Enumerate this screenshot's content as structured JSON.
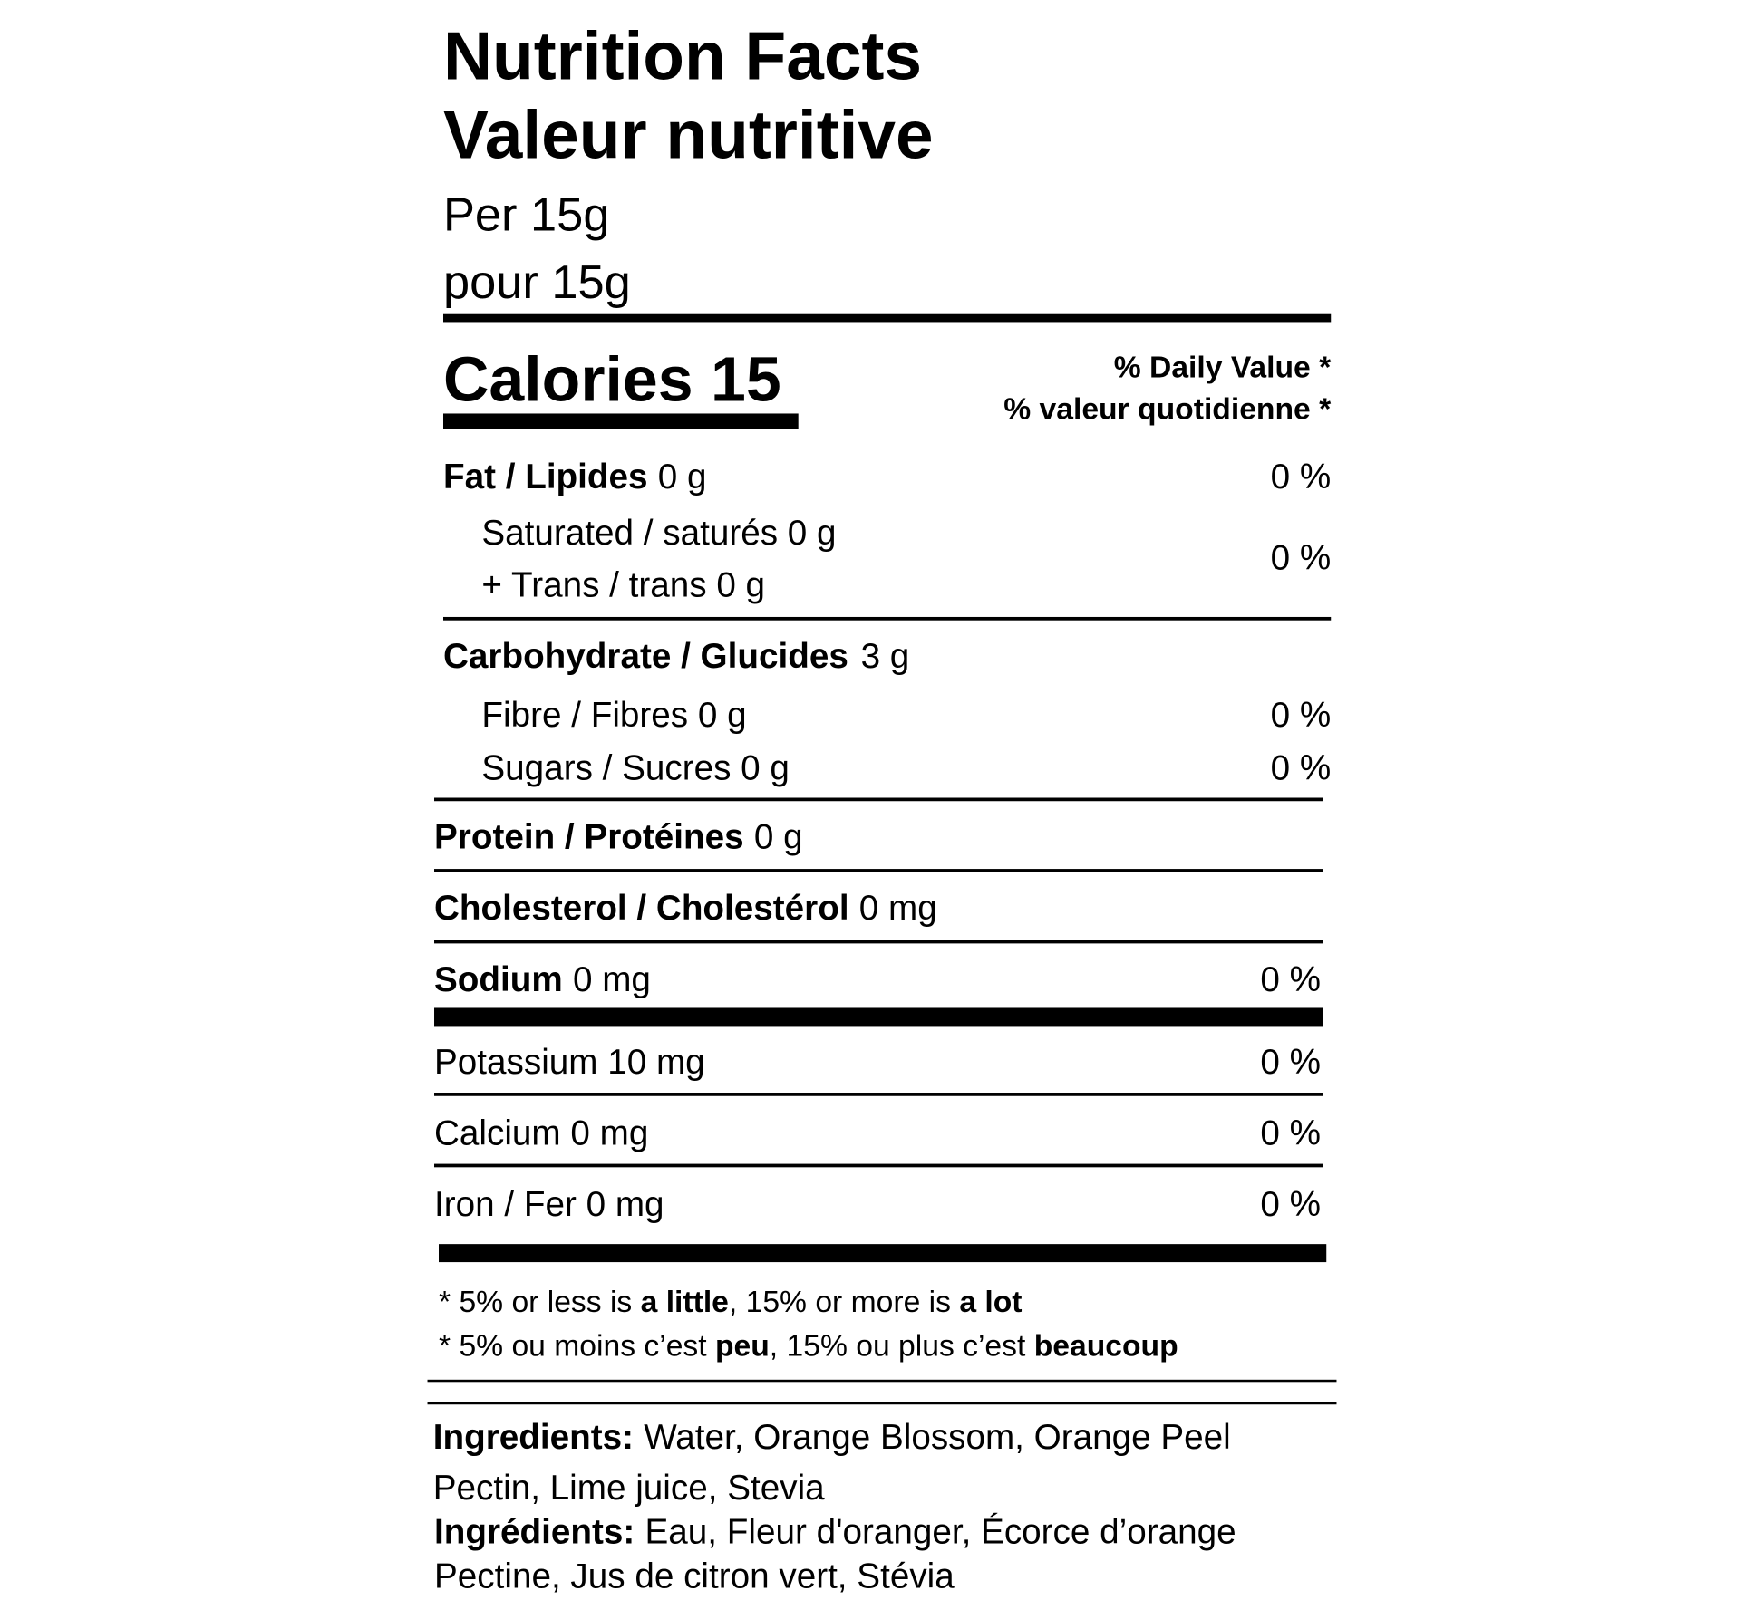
{
  "header": {
    "title_en": "Nutrition Facts",
    "title_fr": "Valeur nutritive",
    "serving_en": "Per 15g",
    "serving_fr": "pour 15g"
  },
  "calories": {
    "label": "Calories 15"
  },
  "daily_value": {
    "en": "% Daily Value *",
    "fr": "% valeur quotidienne *"
  },
  "nutrients": {
    "fat": {
      "label": "Fat / Lipides",
      "amount": "0 g",
      "dv": "0 %"
    },
    "saturated": {
      "label": "Saturated / saturés 0 g"
    },
    "trans": {
      "label": "+ Trans / trans 0 g"
    },
    "saturated_trans_dv": "0 %",
    "carbohydrate": {
      "label": "Carbohydrate / Glucides",
      "amount": "3 g"
    },
    "fibre": {
      "label": "Fibre / Fibres 0 g",
      "dv": "0 %"
    },
    "sugars": {
      "label": "Sugars / Sucres 0 g",
      "dv": "0 %"
    },
    "protein": {
      "label": "Protein / Protéines",
      "amount": "0 g"
    },
    "cholesterol": {
      "label": "Cholesterol / Cholestérol",
      "amount": "0 mg"
    },
    "sodium": {
      "label": "Sodium",
      "amount": "0 mg",
      "dv": "0 %"
    },
    "potassium": {
      "label": "Potassium 10 mg",
      "dv": "0 %"
    },
    "calcium": {
      "label": "Calcium 0 mg",
      "dv": "0 %"
    },
    "iron": {
      "label": "Iron / Fer 0 mg",
      "dv": "0 %"
    }
  },
  "footnote": {
    "en": [
      "* 5% or less is ",
      "a little",
      ", 15% or more is ",
      "a lot"
    ],
    "fr": [
      "* 5% ou moins c’est ",
      "peu",
      ", 15% ou plus c’est ",
      "beaucoup"
    ]
  },
  "ingredients": {
    "en": {
      "label": "Ingredients:",
      "lines": [
        "Water, Orange Blossom, Orange Peel",
        "Pectin, Lime juice, Stevia"
      ]
    },
    "fr": {
      "label": "Ingrédients:",
      "lines": [
        "Eau, Fleur d'oranger, Écorce d’orange",
        "Pectine, Jus de citron vert, Stévia"
      ]
    }
  }
}
